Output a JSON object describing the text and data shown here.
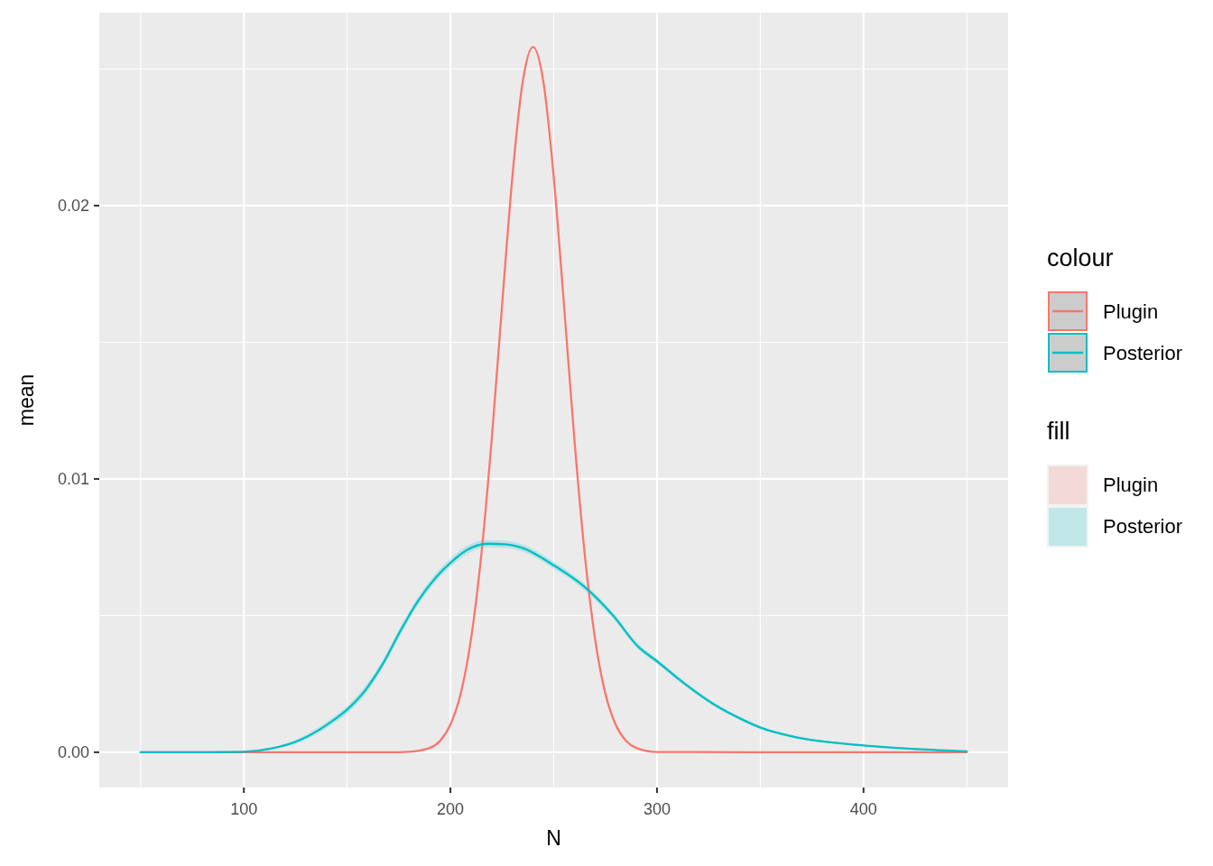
{
  "chart_data": {
    "type": "line",
    "xlabel": "N",
    "ylabel": "mean",
    "legend_title": [
      "colour",
      "fill"
    ],
    "legend": "right",
    "grid": true,
    "xlim": [
      30,
      470
    ],
    "xticks": [
      100,
      200,
      300,
      400
    ],
    "ylim": [
      -0.00129,
      0.02706
    ],
    "yticks": [
      {
        "value": 0,
        "label": "0.00"
      },
      {
        "value": 0.01,
        "label": "0.01"
      },
      {
        "value": 0.02,
        "label": "0.02"
      }
    ],
    "series": [
      {
        "name": "Plugin",
        "color": "#f8766d",
        "x": [
          50,
          100,
          150,
          170,
          180,
          190,
          195,
          200,
          205,
          210,
          215,
          220,
          225,
          230,
          235,
          240,
          245,
          250,
          255,
          260,
          265,
          270,
          275,
          280,
          285,
          290,
          300,
          350,
          400,
          450
        ],
        "values": [
          0,
          0,
          0,
          0,
          2e-05,
          0.00016,
          0.00042,
          0.00101,
          0.00215,
          0.00416,
          0.00726,
          0.01146,
          0.01635,
          0.02106,
          0.02453,
          0.0258,
          0.02453,
          0.02106,
          0.01635,
          0.01146,
          0.00726,
          0.00416,
          0.00215,
          0.00101,
          0.00042,
          0.00016,
          1e-05,
          0,
          0,
          0
        ]
      },
      {
        "name": "Posterior",
        "color": "#00bfc4",
        "x": [
          50,
          75,
          100,
          113,
          127.5,
          142,
          150,
          157,
          167,
          175.5,
          184,
          193,
          200.4,
          208,
          218,
          226.6,
          235.4,
          250,
          264.6,
          279,
          290.8,
          300,
          312.7,
          327,
          341.5,
          350.2,
          366,
          400,
          425,
          450
        ],
        "values": [
          0,
          0,
          2e-05,
          0.00013,
          0.00046,
          0.0011,
          0.00156,
          0.0021,
          0.0032,
          0.0044,
          0.0055,
          0.0064,
          0.00696,
          0.0074,
          0.00763,
          0.00761,
          0.00746,
          0.00684,
          0.00607,
          0.00498,
          0.00387,
          0.00333,
          0.00255,
          0.00178,
          0.00119,
          0.0009,
          0.00057,
          0.00025,
          0.00012,
          3e-05
        ],
        "lower": [
          0,
          0,
          1e-05,
          0.0001,
          0.00038,
          0.00098,
          0.00142,
          0.00195,
          0.00305,
          0.00425,
          0.00535,
          0.00625,
          0.0068,
          0.00725,
          0.0075,
          0.00748,
          0.00733,
          0.00671,
          0.00595,
          0.00487,
          0.00377,
          0.00324,
          0.00247,
          0.00171,
          0.00113,
          0.00085,
          0.00053,
          0.00022,
          0.0001,
          2e-05
        ],
        "upper": [
          0,
          0,
          3e-05,
          0.00016,
          0.00054,
          0.00122,
          0.0017,
          0.00225,
          0.00335,
          0.00455,
          0.00565,
          0.00655,
          0.00712,
          0.00755,
          0.00776,
          0.00774,
          0.00759,
          0.00697,
          0.00619,
          0.00509,
          0.00397,
          0.00342,
          0.00263,
          0.00185,
          0.00125,
          0.00095,
          0.00061,
          0.00028,
          0.00014,
          4e-05
        ]
      }
    ]
  }
}
